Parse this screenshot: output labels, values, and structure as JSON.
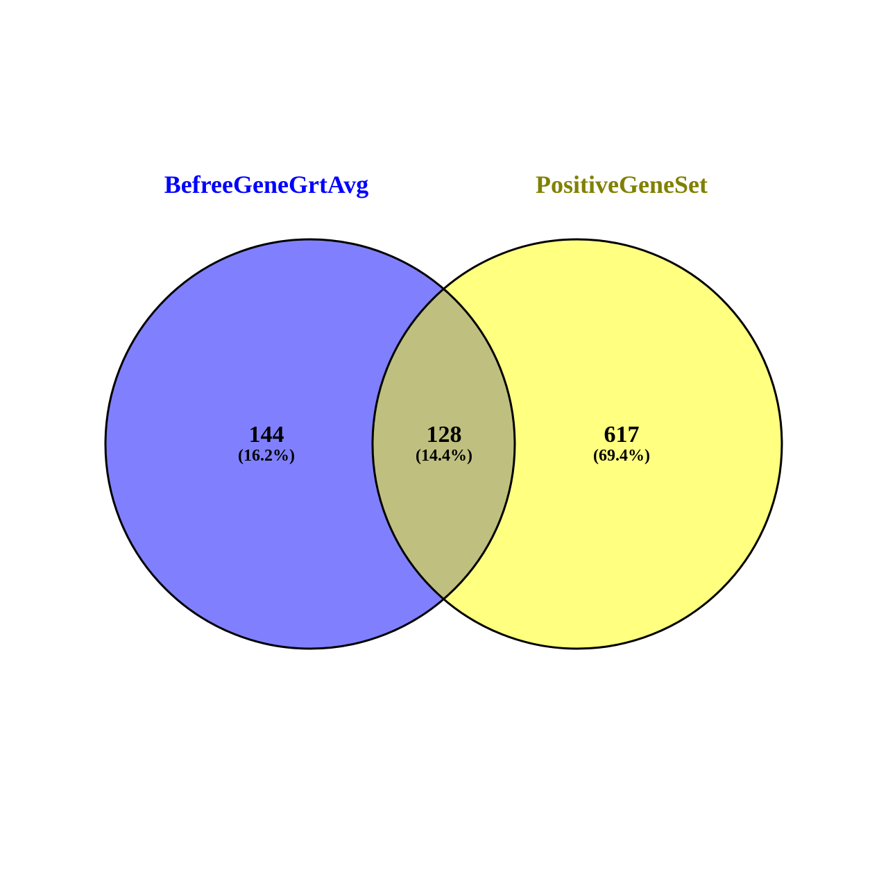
{
  "sets": [
    {
      "name": "BefreeGeneGrtAvg",
      "fill_color": "#8080ff",
      "label_color": "#0000ff"
    },
    {
      "name": "PositiveGeneSet",
      "fill_color": "#ffff80",
      "label_color": "#808000"
    }
  ],
  "regions": {
    "left_only": {
      "count": "144",
      "percent": "(16.2%)"
    },
    "overlap": {
      "count": "128",
      "percent": "(14.4%)",
      "fill_color": "#bfbf80"
    },
    "right_only": {
      "count": "617",
      "percent": "(69.4%)"
    }
  },
  "outline_color": "#000000"
}
